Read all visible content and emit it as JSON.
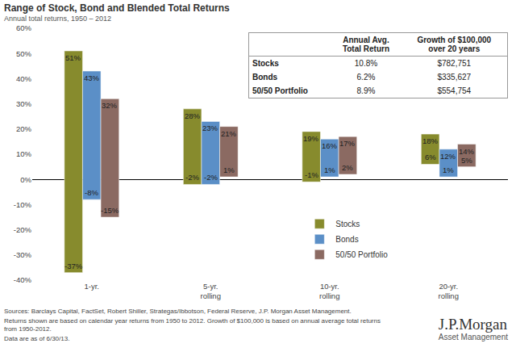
{
  "chart_data": {
    "type": "bar",
    "title": "Range of Stock, Bond and Blended Total Returns",
    "subtitle": "Annual total returns, 1950 – 2012",
    "categories": [
      "1-yr.",
      "5-yr.\nrolling",
      "10-yr.\nrolling",
      "20-yr.\nrolling"
    ],
    "series": [
      {
        "name": "Stocks",
        "color": "#878b2d",
        "values": [
          51,
          28,
          19,
          18
        ],
        "value_labels": [
          "51%",
          "28%",
          "19%",
          "18%"
        ],
        "low": [
          -37,
          -2,
          -1,
          6
        ],
        "low_labels": [
          "-37%",
          "-2%",
          "-1%",
          "6%"
        ]
      },
      {
        "name": "Bonds",
        "color": "#5b8fc7",
        "values": [
          43,
          23,
          16,
          12
        ],
        "value_labels": [
          "43%",
          "23%",
          "16%",
          "12%"
        ],
        "low": [
          -8,
          -2,
          1,
          1
        ],
        "low_labels": [
          "-8%",
          "-2%",
          "1%",
          "1%"
        ]
      },
      {
        "name": "50/50 Portfolio",
        "color": "#8b6a62",
        "values": [
          32,
          21,
          17,
          14
        ],
        "value_labels": [
          "32%",
          "21%",
          "17%",
          "14%"
        ],
        "low": [
          -15,
          1,
          2,
          5
        ],
        "low_labels": [
          "-15%",
          "1%",
          "2%",
          "5%"
        ]
      }
    ],
    "ylim": [
      -40,
      60
    ],
    "yticks": [
      {
        "value": -40,
        "label": "-40%"
      },
      {
        "value": -30,
        "label": "-30%"
      },
      {
        "value": -20,
        "label": "-20%"
      },
      {
        "value": -10,
        "label": "-10%"
      },
      {
        "value": 0,
        "label": "0%"
      },
      {
        "value": 10,
        "label": "10%"
      },
      {
        "value": 20,
        "label": "20%"
      },
      {
        "value": 30,
        "label": "30%"
      },
      {
        "value": 40,
        "label": "40%"
      },
      {
        "value": 50,
        "label": "50%"
      },
      {
        "value": 60,
        "label": "60%"
      }
    ],
    "grid": false,
    "legend": "right",
    "data_labels": true,
    "table": {
      "columns": [
        "Annual Avg.\nTotal Return",
        "Growth of $100,000\nover 20 years"
      ],
      "rows": [
        [
          "Stocks",
          "10.8%",
          "$782,751"
        ],
        [
          "Bonds",
          "6.2%",
          "$335,627"
        ],
        [
          "50/50 Portfolio",
          "8.9%",
          "$554,754"
        ]
      ]
    },
    "notes": [
      "Sources: Barclays Capital, FactSet, Robert Shiller, Strategas/Ibbotson, Federal Reserve, J.P. Morgan Asset Management.",
      "Returns shown are based on calendar year returns from 1950 to 2012. Growth of $100,000 is based on annual average total returns from 1950-2012.",
      "Data are as of 6/30/13."
    ],
    "logo": {
      "name": "J.P.Morgan",
      "tagline": "Asset Management"
    }
  }
}
